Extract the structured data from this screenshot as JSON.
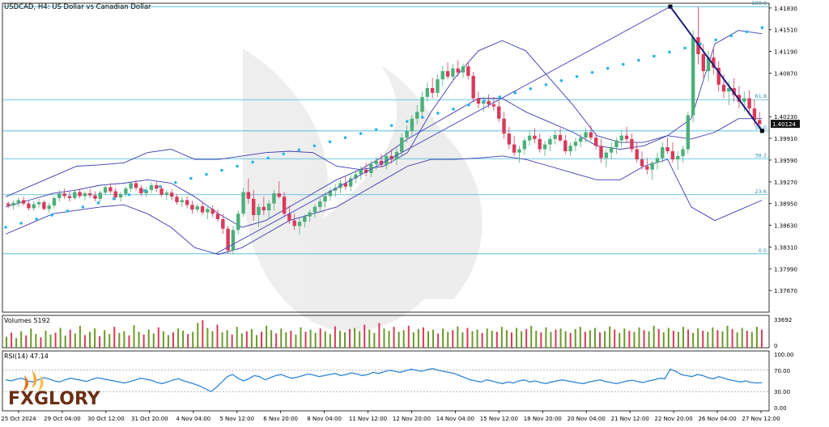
{
  "header": {
    "title": "USDCAD, H4:  US Dollar vs Canadian Dollar"
  },
  "chart_data": {
    "type": "candlestick",
    "symbol": "USDCAD",
    "timeframe": "H4",
    "title": "USDCAD, H4:  US Dollar vs Canadian Dollar",
    "ylim": [
      1.3735,
      1.419
    ],
    "price_ticks": [
      "1.41830",
      "1.41510",
      "1.41190",
      "1.40870",
      "1.40230",
      "1.39910",
      "1.39590",
      "1.39270",
      "1.38950",
      "1.38630",
      "1.38310",
      "1.37990",
      "1.37670"
    ],
    "current_price": "1.40124",
    "x_labels": [
      "25 Oct 2024",
      "29 Oct 04:00",
      "30 Oct 12:00",
      "31 Oct 20:00",
      "4 Nov 04:00",
      "5 Nov 12:00",
      "6 Nov 20:00",
      "8 Nov 04:00",
      "11 Nov 12:00",
      "12 Nov 20:00",
      "14 Nov 04:00",
      "15 Nov 12:00",
      "18 Nov 20:00",
      "20 Nov 04:00",
      "21 Nov 12:00",
      "22 Nov 20:00",
      "26 Nov 04:00",
      "27 Nov 12:00"
    ],
    "fibonacci": {
      "levels": [
        {
          "label": "100.0",
          "price": 1.4185
        },
        {
          "label": "61.8",
          "price": 1.4048
        },
        {
          "label": "50.0",
          "price": 1.4002
        },
        {
          "label": "38.2",
          "price": 1.3961
        },
        {
          "label": "23.6",
          "price": 1.3908
        },
        {
          "label": "0.0",
          "price": 1.3821
        }
      ]
    },
    "trend_lines": [
      {
        "from": {
          "bar": 48,
          "price": 1.3821
        },
        "to": {
          "bar": 152,
          "price": 1.4185
        }
      },
      {
        "from": {
          "bar": 152,
          "price": 1.4185
        },
        "to": {
          "bar": 173,
          "price": 1.4002
        }
      }
    ],
    "bollinger": {
      "upper": [
        1.3905,
        1.392,
        1.3935,
        1.395,
        1.3952,
        1.3955,
        1.397,
        1.3975,
        1.396,
        1.396,
        1.3965,
        1.397,
        1.3972,
        1.397,
        1.395,
        1.3945,
        1.395,
        1.397,
        1.403,
        1.408,
        1.412,
        1.4135,
        1.412,
        1.408,
        1.404,
        1.3995,
        1.3985,
        1.3985,
        1.3995,
        1.402,
        1.413,
        1.415,
        1.4145
      ],
      "middle": [
        1.389,
        1.39,
        1.391,
        1.3915,
        1.3922,
        1.3925,
        1.393,
        1.3925,
        1.3905,
        1.388,
        1.386,
        1.387,
        1.389,
        1.391,
        1.393,
        1.3945,
        1.3965,
        1.399,
        1.401,
        1.403,
        1.405,
        1.405,
        1.403,
        1.4015,
        1.4,
        1.398,
        1.3975,
        1.398,
        1.3995,
        1.399,
        1.4,
        1.402,
        1.402
      ],
      "lower": [
        1.385,
        1.3865,
        1.388,
        1.3885,
        1.389,
        1.3893,
        1.388,
        1.386,
        1.383,
        1.382,
        1.383,
        1.385,
        1.387,
        1.388,
        1.389,
        1.391,
        1.393,
        1.395,
        1.396,
        1.396,
        1.3962,
        1.3965,
        1.396,
        1.395,
        1.394,
        1.393,
        1.393,
        1.395,
        1.396,
        1.389,
        1.387,
        1.3885,
        1.39
      ]
    },
    "candles": [
      [
        1.3895,
        1.3898,
        1.3888,
        1.3892
      ],
      [
        1.3892,
        1.39,
        1.3886,
        1.3896
      ],
      [
        1.3896,
        1.3904,
        1.389,
        1.39
      ],
      [
        1.39,
        1.3905,
        1.3892,
        1.3895
      ],
      [
        1.3895,
        1.3899,
        1.3885,
        1.3888
      ],
      [
        1.3888,
        1.3898,
        1.3884,
        1.3894
      ],
      [
        1.3894,
        1.3902,
        1.3889,
        1.3897
      ],
      [
        1.3897,
        1.39,
        1.3885,
        1.3887
      ],
      [
        1.3887,
        1.3896,
        1.3881,
        1.3892
      ],
      [
        1.3892,
        1.3906,
        1.3888,
        1.3903
      ],
      [
        1.3903,
        1.3915,
        1.3898,
        1.391
      ],
      [
        1.391,
        1.3917,
        1.3902,
        1.3906
      ],
      [
        1.3906,
        1.3912,
        1.3898,
        1.3903
      ],
      [
        1.3903,
        1.3916,
        1.39,
        1.3912
      ],
      [
        1.3912,
        1.3917,
        1.3903,
        1.3906
      ],
      [
        1.3906,
        1.3913,
        1.39,
        1.391
      ],
      [
        1.391,
        1.3916,
        1.3903,
        1.3907
      ],
      [
        1.3907,
        1.3913,
        1.3898,
        1.3902
      ],
      [
        1.3902,
        1.3914,
        1.3897,
        1.3911
      ],
      [
        1.3911,
        1.3923,
        1.3907,
        1.3919
      ],
      [
        1.3919,
        1.3925,
        1.391,
        1.3913
      ],
      [
        1.3913,
        1.3918,
        1.39,
        1.3904
      ],
      [
        1.3904,
        1.3912,
        1.3898,
        1.3909
      ],
      [
        1.3909,
        1.392,
        1.3905,
        1.3917
      ],
      [
        1.3917,
        1.3928,
        1.3912,
        1.3925
      ],
      [
        1.3925,
        1.393,
        1.3914,
        1.3918
      ],
      [
        1.3918,
        1.3922,
        1.3906,
        1.391
      ],
      [
        1.391,
        1.3919,
        1.3905,
        1.3915
      ],
      [
        1.3915,
        1.3926,
        1.391,
        1.3922
      ],
      [
        1.3922,
        1.3927,
        1.3912,
        1.3917
      ],
      [
        1.3917,
        1.3921,
        1.3905,
        1.3908
      ],
      [
        1.3908,
        1.3915,
        1.39,
        1.3911
      ],
      [
        1.3911,
        1.3916,
        1.39,
        1.3905
      ],
      [
        1.3905,
        1.3909,
        1.3893,
        1.3897
      ],
      [
        1.3897,
        1.3905,
        1.389,
        1.39
      ],
      [
        1.39,
        1.3906,
        1.3888,
        1.3893
      ],
      [
        1.3893,
        1.3899,
        1.388,
        1.3886
      ],
      [
        1.3886,
        1.3895,
        1.3882,
        1.3891
      ],
      [
        1.3891,
        1.3897,
        1.3878,
        1.3882
      ],
      [
        1.3882,
        1.389,
        1.3872,
        1.3887
      ],
      [
        1.3887,
        1.3892,
        1.3875,
        1.388
      ],
      [
        1.388,
        1.3886,
        1.3868,
        1.3872
      ],
      [
        1.3872,
        1.388,
        1.385,
        1.3858
      ],
      [
        1.3858,
        1.3862,
        1.3821,
        1.3826
      ],
      [
        1.3826,
        1.3862,
        1.382,
        1.3856
      ],
      [
        1.3856,
        1.3885,
        1.385,
        1.388
      ],
      [
        1.388,
        1.3918,
        1.3875,
        1.3912
      ],
      [
        1.3912,
        1.3932,
        1.3895,
        1.3902
      ],
      [
        1.3902,
        1.3915,
        1.387,
        1.3878
      ],
      [
        1.3878,
        1.3895,
        1.386,
        1.389
      ],
      [
        1.389,
        1.3905,
        1.3878,
        1.3885
      ],
      [
        1.3885,
        1.39,
        1.3872,
        1.3895
      ],
      [
        1.3895,
        1.3915,
        1.3885,
        1.391
      ],
      [
        1.391,
        1.3928,
        1.3902,
        1.3905
      ],
      [
        1.3905,
        1.3912,
        1.3875,
        1.388
      ],
      [
        1.388,
        1.3892,
        1.3865,
        1.387
      ],
      [
        1.387,
        1.388,
        1.3856,
        1.3862
      ],
      [
        1.3862,
        1.3874,
        1.385,
        1.3868
      ],
      [
        1.3868,
        1.3879,
        1.386,
        1.3876
      ],
      [
        1.3876,
        1.3886,
        1.3868,
        1.3882
      ],
      [
        1.3882,
        1.3894,
        1.3874,
        1.389
      ],
      [
        1.389,
        1.3903,
        1.3883,
        1.3898
      ],
      [
        1.3898,
        1.3911,
        1.389,
        1.3906
      ],
      [
        1.3906,
        1.3919,
        1.3899,
        1.3914
      ],
      [
        1.3914,
        1.3924,
        1.3905,
        1.3918
      ],
      [
        1.3918,
        1.393,
        1.391,
        1.3925
      ],
      [
        1.3925,
        1.3935,
        1.3915,
        1.392
      ],
      [
        1.392,
        1.3937,
        1.3913,
        1.3932
      ],
      [
        1.3932,
        1.3944,
        1.3925,
        1.3938
      ],
      [
        1.3938,
        1.395,
        1.393,
        1.3945
      ],
      [
        1.3945,
        1.3955,
        1.3935,
        1.394
      ],
      [
        1.394,
        1.3958,
        1.3934,
        1.3953
      ],
      [
        1.3953,
        1.3964,
        1.3945,
        1.3958
      ],
      [
        1.3958,
        1.3968,
        1.3948,
        1.3952
      ],
      [
        1.3952,
        1.397,
        1.3945,
        1.3965
      ],
      [
        1.3965,
        1.3975,
        1.3954,
        1.396
      ],
      [
        1.396,
        1.3977,
        1.3952,
        1.3971
      ],
      [
        1.3971,
        1.3998,
        1.3965,
        1.3992
      ],
      [
        1.3992,
        1.401,
        1.3985,
        1.4002
      ],
      [
        1.4002,
        1.4025,
        1.3995,
        1.402
      ],
      [
        1.402,
        1.404,
        1.4012,
        1.403
      ],
      [
        1.403,
        1.406,
        1.4022,
        1.4052
      ],
      [
        1.4052,
        1.4073,
        1.4045,
        1.4065
      ],
      [
        1.4065,
        1.408,
        1.405,
        1.4058
      ],
      [
        1.4058,
        1.4085,
        1.4052,
        1.4078
      ],
      [
        1.4078,
        1.4098,
        1.4068,
        1.409
      ],
      [
        1.409,
        1.4103,
        1.4078,
        1.4082
      ],
      [
        1.4082,
        1.41,
        1.4075,
        1.4094
      ],
      [
        1.4094,
        1.4106,
        1.4082,
        1.4088
      ],
      [
        1.4088,
        1.4101,
        1.408,
        1.4097
      ],
      [
        1.4097,
        1.4104,
        1.4078,
        1.4083
      ],
      [
        1.4083,
        1.4089,
        1.4045,
        1.405
      ],
      [
        1.405,
        1.406,
        1.4035,
        1.4042
      ],
      [
        1.4042,
        1.4052,
        1.403,
        1.4046
      ],
      [
        1.4046,
        1.4056,
        1.4036,
        1.4041
      ],
      [
        1.4041,
        1.4052,
        1.4032,
        1.4038
      ],
      [
        1.4038,
        1.4047,
        1.4015,
        1.402
      ],
      [
        1.402,
        1.403,
        1.399,
        1.3998
      ],
      [
        1.3998,
        1.4008,
        1.3975,
        1.3982
      ],
      [
        1.3982,
        1.3995,
        1.3965,
        1.397
      ],
      [
        1.397,
        1.398,
        1.3955,
        1.3975
      ],
      [
        1.3975,
        1.3992,
        1.3967,
        1.3988
      ],
      [
        1.3988,
        1.4002,
        1.398,
        1.3995
      ],
      [
        1.3995,
        1.4006,
        1.3984,
        1.399
      ],
      [
        1.399,
        1.3998,
        1.397,
        1.3975
      ],
      [
        1.3975,
        1.3987,
        1.3965,
        1.3982
      ],
      [
        1.3982,
        1.3995,
        1.3972,
        1.399
      ],
      [
        1.399,
        1.4003,
        1.3982,
        1.3996
      ],
      [
        1.3996,
        1.4006,
        1.3985,
        1.3988
      ],
      [
        1.3988,
        1.3996,
        1.3968,
        1.3972
      ],
      [
        1.3972,
        1.3985,
        1.3965,
        1.398
      ],
      [
        1.398,
        1.3992,
        1.3972,
        1.3986
      ],
      [
        1.3986,
        1.3998,
        1.3978,
        1.3992
      ],
      [
        1.3992,
        1.4006,
        1.3985,
        1.4
      ],
      [
        1.4,
        1.401,
        1.3988,
        1.3992
      ],
      [
        1.3992,
        1.3998,
        1.3975,
        1.398
      ],
      [
        1.398,
        1.399,
        1.3955,
        1.3962
      ],
      [
        1.3962,
        1.3975,
        1.3948,
        1.397
      ],
      [
        1.397,
        1.3985,
        1.396,
        1.3978
      ],
      [
        1.3978,
        1.3992,
        1.3968,
        1.3988
      ],
      [
        1.3988,
        1.4002,
        1.3978,
        1.3995
      ],
      [
        1.3995,
        1.4008,
        1.3985,
        1.399
      ],
      [
        1.399,
        1.3998,
        1.397,
        1.3975
      ],
      [
        1.3975,
        1.3985,
        1.3955,
        1.396
      ],
      [
        1.396,
        1.3972,
        1.3945,
        1.395
      ],
      [
        1.395,
        1.3962,
        1.3938,
        1.3945
      ],
      [
        1.3945,
        1.3958,
        1.393,
        1.3955
      ],
      [
        1.3955,
        1.397,
        1.3945,
        1.3962
      ],
      [
        1.3962,
        1.3985,
        1.3955,
        1.3978
      ],
      [
        1.3978,
        1.3992,
        1.3968,
        1.3972
      ],
      [
        1.3972,
        1.3985,
        1.3955,
        1.396
      ],
      [
        1.396,
        1.3972,
        1.3945,
        1.3965
      ],
      [
        1.3965,
        1.398,
        1.3955,
        1.3975
      ],
      [
        1.3975,
        1.403,
        1.3968,
        1.4025
      ],
      [
        1.4025,
        1.415,
        1.4015,
        1.414
      ],
      [
        1.414,
        1.4185,
        1.41,
        1.4115
      ],
      [
        1.4115,
        1.413,
        1.408,
        1.409
      ],
      [
        1.409,
        1.412,
        1.4075,
        1.411
      ],
      [
        1.411,
        1.4125,
        1.4085,
        1.4095
      ],
      [
        1.4095,
        1.4105,
        1.406,
        1.407
      ],
      [
        1.407,
        1.4085,
        1.405,
        1.406
      ],
      [
        1.406,
        1.4075,
        1.404,
        1.4065
      ],
      [
        1.4065,
        1.408,
        1.4045,
        1.4055
      ],
      [
        1.4055,
        1.4068,
        1.4035,
        1.4045
      ],
      [
        1.4045,
        1.406,
        1.403,
        1.405
      ],
      [
        1.405,
        1.4062,
        1.4025,
        1.4035
      ],
      [
        1.4035,
        1.4048,
        1.401,
        1.4018
      ],
      [
        1.4018,
        1.403,
        1.4005,
        1.4012
      ]
    ],
    "sar": [
      1.386,
      1.3866,
      1.3872,
      1.3878,
      1.3884,
      1.389,
      1.3896,
      1.3902,
      1.3908,
      1.3914,
      1.392,
      1.3926,
      1.3932,
      1.3938,
      1.3944,
      1.395,
      1.3956,
      1.3962,
      1.3968,
      1.3974,
      1.398,
      1.3986,
      1.3992,
      1.3998,
      1.4004,
      1.401,
      1.4016,
      1.4022,
      1.4028,
      1.4034,
      1.404,
      1.4046,
      1.4052,
      1.4058,
      1.4064,
      1.407,
      1.4076,
      1.4082,
      1.4088,
      1.4094,
      1.41,
      1.4106,
      1.4112,
      1.4118,
      1.4124,
      1.413,
      1.4136,
      1.4142,
      1.4148,
      1.4154
    ],
    "volume_axis": [
      "33692",
      "0"
    ],
    "volume_title": "Volumes 5192",
    "volumes": [
      40,
      55,
      35,
      60,
      45,
      70,
      50,
      38,
      62,
      48,
      55,
      72,
      44,
      66,
      52,
      80,
      46,
      58,
      70,
      42,
      64,
      50,
      76,
      54,
      60,
      45,
      82,
      58,
      48,
      66,
      52,
      74,
      60,
      46,
      56,
      70,
      62,
      50,
      58,
      90,
      100,
      72,
      60,
      84,
      56,
      64,
      48,
      76,
      52,
      60,
      68,
      46,
      58,
      80,
      64,
      52,
      70,
      56,
      62,
      48,
      74,
      58,
      66,
      54,
      70,
      60,
      50,
      78,
      62,
      56,
      68,
      72,
      60,
      84,
      66,
      54,
      90,
      70,
      62,
      76,
      58,
      64,
      80,
      56,
      68,
      74,
      60,
      66,
      52,
      70,
      58,
      64,
      78,
      56,
      72,
      60,
      66,
      54,
      70,
      62,
      58,
      76,
      64,
      56,
      72,
      60,
      68,
      80,
      62,
      56,
      74,
      58,
      66,
      70,
      60,
      54,
      68,
      76,
      58,
      64,
      72,
      56,
      60,
      78,
      66,
      54,
      70,
      62,
      58,
      74,
      64,
      60,
      80,
      68,
      56,
      72,
      62,
      58,
      76,
      66,
      54,
      70,
      62,
      58,
      74,
      64,
      60,
      80,
      68,
      56,
      72,
      62,
      58,
      76,
      66
    ],
    "rsi_title": "RSI(14) 47.14",
    "rsi_axis": [
      "100.00",
      "70.00",
      "30.00",
      "0.00"
    ],
    "rsi": [
      52,
      50,
      53,
      55,
      50,
      48,
      52,
      56,
      54,
      50,
      48,
      52,
      55,
      53,
      51,
      49,
      53,
      56,
      54,
      52,
      50,
      48,
      46,
      49,
      52,
      55,
      53,
      51,
      47,
      45,
      48,
      52,
      54,
      50,
      47,
      44,
      40,
      35,
      30,
      38,
      48,
      58,
      62,
      55,
      50,
      54,
      60,
      58,
      52,
      56,
      60,
      62,
      58,
      55,
      57,
      60,
      63,
      61,
      58,
      60,
      62,
      64,
      60,
      62,
      65,
      63,
      60,
      62,
      66,
      64,
      67,
      70,
      68,
      66,
      69,
      72,
      70,
      68,
      71,
      73,
      70,
      68,
      66,
      64,
      60,
      56,
      52,
      50,
      48,
      52,
      50,
      47,
      45,
      48,
      46,
      50,
      52,
      48,
      50,
      47,
      45,
      48,
      50,
      52,
      50,
      48,
      46,
      45,
      48,
      50,
      52,
      49,
      47,
      45,
      47,
      50,
      51,
      49,
      47,
      50,
      52,
      55,
      54,
      72,
      68,
      62,
      60,
      58,
      62,
      60,
      56,
      54,
      58,
      55,
      52,
      50,
      48,
      50,
      47,
      46,
      47
    ]
  },
  "branding": {
    "logo_text": "FXGLORY"
  }
}
